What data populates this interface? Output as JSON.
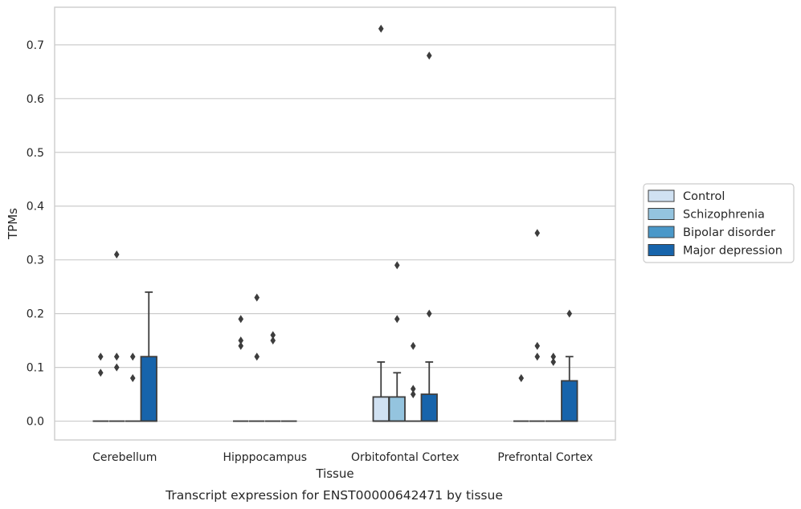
{
  "caption": "Transcript expression for ENST00000642471 by tissue",
  "chart_data": {
    "type": "box",
    "xlabel": "Tissue",
    "ylabel": "TPMs",
    "ylim": [
      -0.035,
      0.77
    ],
    "yticks": [
      0.0,
      0.1,
      0.2,
      0.3,
      0.4,
      0.5,
      0.6,
      0.7
    ],
    "ytick_labels": [
      "0.0",
      "0.1",
      "0.2",
      "0.3",
      "0.4",
      "0.5",
      "0.6",
      "0.7"
    ],
    "grid": "horizontal",
    "legend_position": "right",
    "categories": [
      "Cerebellum",
      "Hipppocampus",
      "Orbitofontal Cortex",
      "Prefrontal Cortex"
    ],
    "series": [
      {
        "name": "Control",
        "color": "#d0e1f2",
        "boxes": [
          {
            "q1": 0,
            "median": 0,
            "q3": 0,
            "whisker_low": 0,
            "whisker_high": 0,
            "outliers": [
              0.09,
              0.12
            ]
          },
          {
            "q1": 0,
            "median": 0,
            "q3": 0,
            "whisker_low": 0,
            "whisker_high": 0,
            "outliers": [
              0.14,
              0.15,
              0.19
            ]
          },
          {
            "q1": 0,
            "median": 0,
            "q3": 0.045,
            "whisker_low": 0,
            "whisker_high": 0.11,
            "outliers": [
              0.73
            ]
          },
          {
            "q1": 0,
            "median": 0,
            "q3": 0,
            "whisker_low": 0,
            "whisker_high": 0,
            "outliers": [
              0.08
            ]
          }
        ]
      },
      {
        "name": "Schizophrenia",
        "color": "#94c4df",
        "boxes": [
          {
            "q1": 0,
            "median": 0,
            "q3": 0,
            "whisker_low": 0,
            "whisker_high": 0,
            "outliers": [
              0.1,
              0.12,
              0.31
            ]
          },
          {
            "q1": 0,
            "median": 0,
            "q3": 0,
            "whisker_low": 0,
            "whisker_high": 0,
            "outliers": [
              0.12,
              0.23
            ]
          },
          {
            "q1": 0,
            "median": 0,
            "q3": 0.045,
            "whisker_low": 0,
            "whisker_high": 0.09,
            "outliers": [
              0.19,
              0.29
            ]
          },
          {
            "q1": 0,
            "median": 0,
            "q3": 0,
            "whisker_low": 0,
            "whisker_high": 0,
            "outliers": [
              0.12,
              0.14,
              0.35
            ]
          }
        ]
      },
      {
        "name": "Bipolar disorder",
        "color": "#4a98c9",
        "boxes": [
          {
            "q1": 0,
            "median": 0,
            "q3": 0,
            "whisker_low": 0,
            "whisker_high": 0,
            "outliers": [
              0.08,
              0.12
            ]
          },
          {
            "q1": 0,
            "median": 0,
            "q3": 0,
            "whisker_low": 0,
            "whisker_high": 0,
            "outliers": [
              0.15,
              0.16
            ]
          },
          {
            "q1": 0,
            "median": 0,
            "q3": 0,
            "whisker_low": 0,
            "whisker_high": 0,
            "outliers": [
              0.05,
              0.06,
              0.14
            ]
          },
          {
            "q1": 0,
            "median": 0,
            "q3": 0,
            "whisker_low": 0,
            "whisker_high": 0,
            "outliers": [
              0.11,
              0.12
            ]
          }
        ]
      },
      {
        "name": "Major depression",
        "color": "#1764ab",
        "boxes": [
          {
            "q1": 0,
            "median": 0,
            "q3": 0.12,
            "whisker_low": 0,
            "whisker_high": 0.24,
            "outliers": []
          },
          {
            "q1": 0,
            "median": 0,
            "q3": 0,
            "whisker_low": 0,
            "whisker_high": 0,
            "outliers": []
          },
          {
            "q1": 0,
            "median": 0,
            "q3": 0.05,
            "whisker_low": 0,
            "whisker_high": 0.11,
            "outliers": [
              0.2,
              0.68
            ]
          },
          {
            "q1": 0,
            "median": 0,
            "q3": 0.075,
            "whisker_low": 0,
            "whisker_high": 0.12,
            "outliers": [
              0.2
            ]
          }
        ]
      }
    ]
  }
}
